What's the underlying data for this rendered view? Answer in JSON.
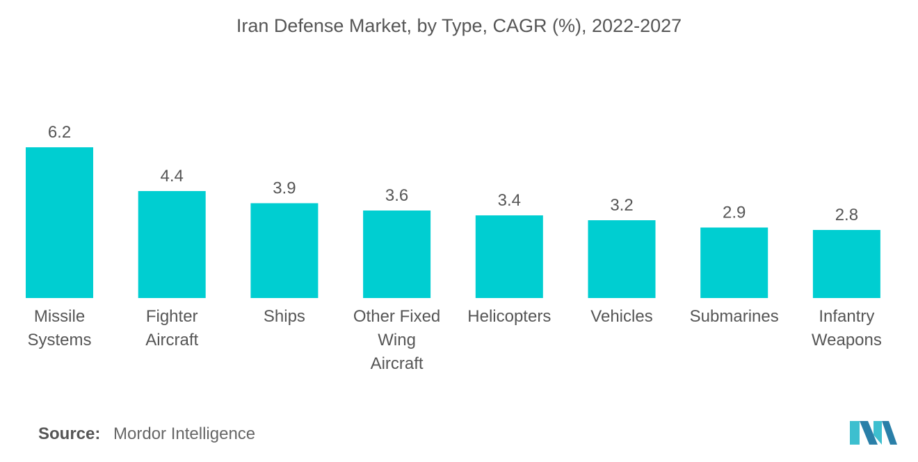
{
  "title": "Iran Defense Market, by Type, CAGR (%), 2022-2027",
  "source": {
    "label": "Source:",
    "text": "Mordor Intelligence"
  },
  "colors": {
    "bar": "#00CED1",
    "title": "#555555",
    "text": "#555555",
    "logo_dark": "#2a7fa8",
    "logo_light": "#3dbfcf"
  },
  "chart_data": {
    "type": "bar",
    "title": "Iran Defense Market, by Type, CAGR (%), 2022-2027",
    "categories": [
      [
        "Missile",
        "Systems"
      ],
      [
        "Fighter",
        "Aircraft"
      ],
      [
        "Ships"
      ],
      [
        "Other Fixed",
        "Wing",
        "Aircraft"
      ],
      [
        "Helicopters"
      ],
      [
        "Vehicles"
      ],
      [
        "Submarines"
      ],
      [
        "Infantry",
        "Weapons"
      ]
    ],
    "values": [
      6.2,
      4.4,
      3.9,
      3.6,
      3.4,
      3.2,
      2.9,
      2.8
    ],
    "ylim": [
      0,
      6.2
    ],
    "grid": false,
    "legend": "none"
  }
}
